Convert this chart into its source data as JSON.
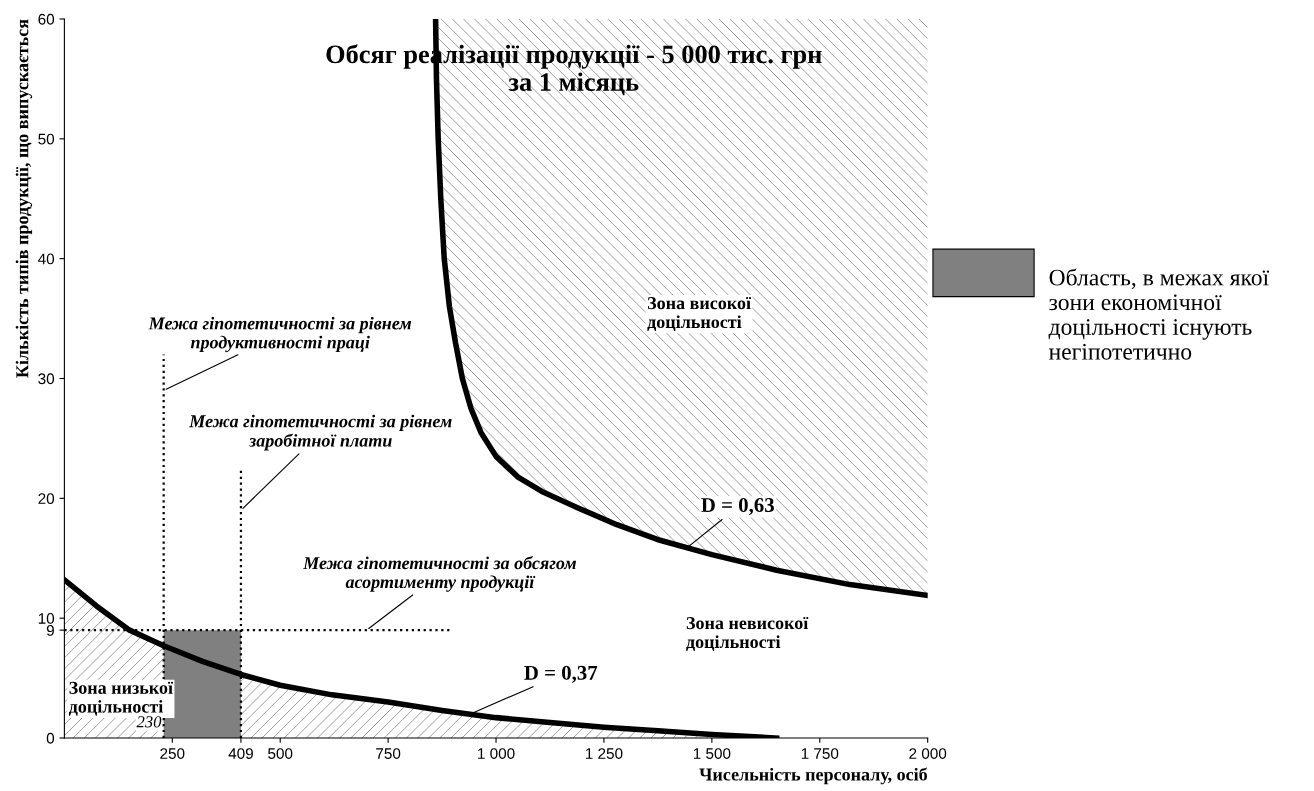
{
  "chart_data": {
    "type": "line",
    "title": "Обсяг реалізації продукції - 5 000 тис. грн за 1 місяць",
    "xlabel": "Чисельність персоналу, осіб",
    "ylabel": "Кількість типів продукції, що випускається",
    "xlim": [
      0,
      2000
    ],
    "ylim": [
      0,
      60
    ],
    "xticks": [
      250,
      409,
      500,
      750,
      {
        "value": 1000,
        "label": "1 000"
      },
      {
        "value": 1250,
        "label": "1 250"
      },
      {
        "value": 1500,
        "label": "1 500"
      },
      {
        "value": 1750,
        "label": "1 750"
      },
      {
        "value": 2000,
        "label": "2 000"
      }
    ],
    "yticks": [
      0,
      9,
      10,
      20,
      30,
      40,
      50,
      60
    ],
    "grid": false,
    "legend": "right",
    "marker": "none",
    "series": [
      {
        "color": "#000000",
        "x": [
          860,
          862,
          866,
          872,
          880,
          892,
          906,
          922,
          942,
          965,
          1000,
          1050,
          1110,
          1190,
          1280,
          1380,
          1500,
          1650,
          1820,
          2000
        ],
        "values": [
          60,
          55,
          50,
          45,
          40,
          36,
          33,
          30,
          27.5,
          25.5,
          23.5,
          21.8,
          20.5,
          19.2,
          17.8,
          16.5,
          15.3,
          14,
          12.8,
          11.9
        ],
        "lower": [
          60,
          55,
          50,
          45,
          40,
          36,
          33,
          30,
          27.5,
          25.5,
          23.5,
          21.8,
          20.5,
          19.2,
          17.8,
          16.5,
          15.3,
          14,
          12.8,
          11.9
        ],
        "upper": [
          60,
          60,
          60,
          60,
          60,
          60,
          60,
          60,
          60,
          60,
          60,
          60,
          60,
          60,
          60,
          60,
          60,
          60,
          60,
          60
        ]
      },
      {
        "type": "area",
        "color": "#000000",
        "x": [
          0,
          75,
          151,
          230,
          320,
          409,
          500,
          620,
          750,
          875,
          1000,
          1125,
          1250,
          1375,
          1500,
          1650
        ],
        "values": [
          13.2,
          11,
          9,
          7.7,
          6.4,
          5.3,
          4.4,
          3.6,
          3,
          2.3,
          1.7,
          1.3,
          0.9,
          0.6,
          0.3,
          0
        ]
      },
      {
        "line_style": "dotted",
        "color": "#000000",
        "x": [
          230,
          230
        ],
        "values": [
          0,
          32
        ]
      },
      {
        "line_style": "dotted",
        "color": "#000000",
        "x": [
          409,
          409
        ],
        "values": [
          0,
          22.5
        ]
      },
      {
        "line_style": "dotted",
        "color": "#000000",
        "x": [
          0,
          900
        ],
        "values": [
          9,
          9
        ]
      },
      {
        "type": "area",
        "name": "Область, в межах якої зони економічної доцільності існують негіпотетично",
        "color": "#808080",
        "x": [
          230,
          409
        ],
        "values": [
          9,
          9
        ]
      }
    ],
    "annotations": [
      {
        "text": "Межа гіпотетичності за рівнем продуктивності праці",
        "x": 230,
        "y": 29
      },
      {
        "text": "Межа гіпотетичності за рівнем заробітної плати",
        "x": 409,
        "y": 19
      },
      {
        "text": "Межа гіпотетичності за обсягом асортименту продукції",
        "x": 700,
        "y": 9
      },
      {
        "text": "D = 0,63",
        "x": 1440,
        "y": 15.8
      },
      {
        "text": "D = 0,37",
        "x": 940,
        "y": 2
      },
      "Зона високої доцільності",
      "Зона невисокої доцільності",
      "Зона низької доцільності",
      {
        "text": "230",
        "x": 230,
        "y": 0
      }
    ]
  }
}
